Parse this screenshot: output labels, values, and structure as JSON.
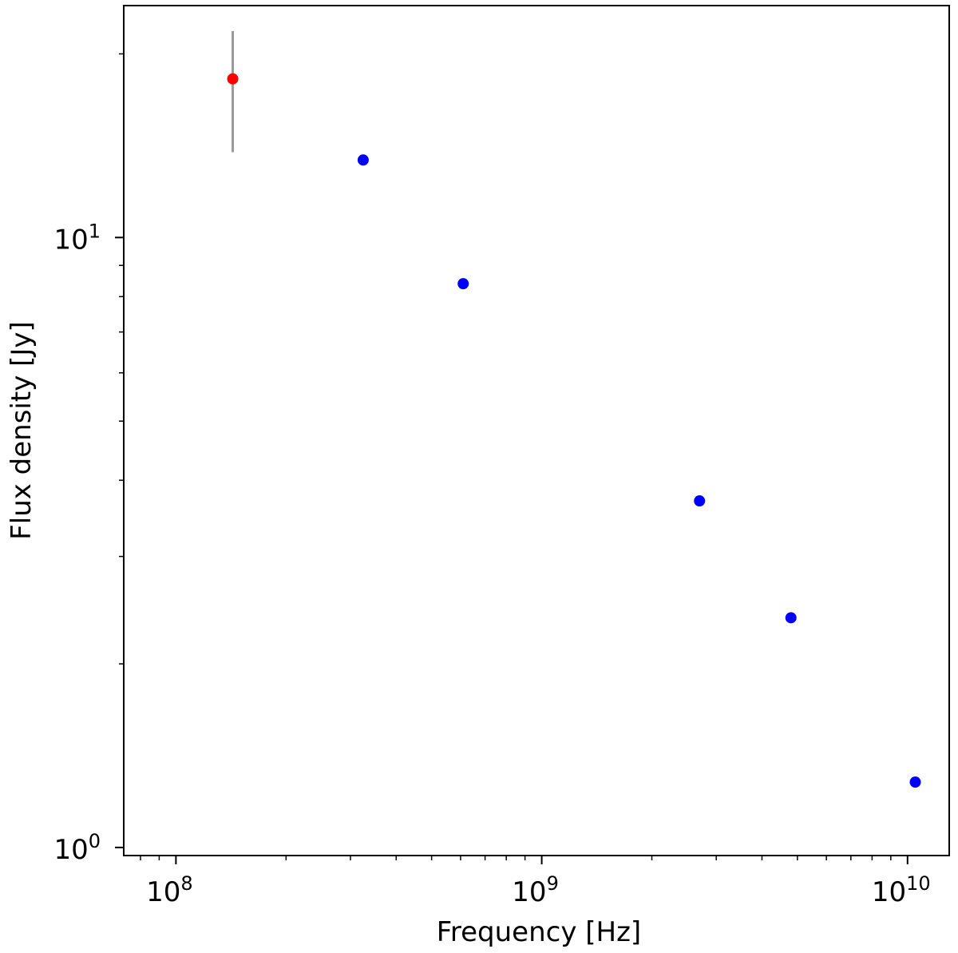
{
  "chart_data": {
    "type": "scatter",
    "xlabel": "Frequency [Hz]",
    "ylabel": "Flux density [Jy]",
    "x_scale": "log",
    "y_scale": "log",
    "xlim": [
      72000000,
      13000000000
    ],
    "ylim": [
      0.97,
      24
    ],
    "x_ticks": [
      {
        "value": 100000000,
        "base": "10",
        "exp": "8"
      },
      {
        "value": 1000000000,
        "base": "10",
        "exp": "9"
      },
      {
        "value": 10000000000,
        "base": "10",
        "exp": "10"
      }
    ],
    "y_ticks": [
      {
        "value": 1,
        "base": "10",
        "exp": "0"
      },
      {
        "value": 10,
        "base": "10",
        "exp": "1"
      }
    ],
    "grid": false,
    "series": [
      {
        "color": "#ff0000",
        "points": [
          {
            "x": 143000000,
            "y": 18.2,
            "y_err_low": 13.8,
            "y_err_high": 21.8
          }
        ]
      },
      {
        "color": "#0000ff",
        "points": [
          {
            "x": 325000000,
            "y": 13.4
          },
          {
            "x": 610000000,
            "y": 8.4
          },
          {
            "x": 2700000000,
            "y": 3.7
          },
          {
            "x": 4800000000,
            "y": 2.38
          },
          {
            "x": 10500000000,
            "y": 1.28
          }
        ]
      }
    ],
    "error_bar_color": "#999999"
  }
}
